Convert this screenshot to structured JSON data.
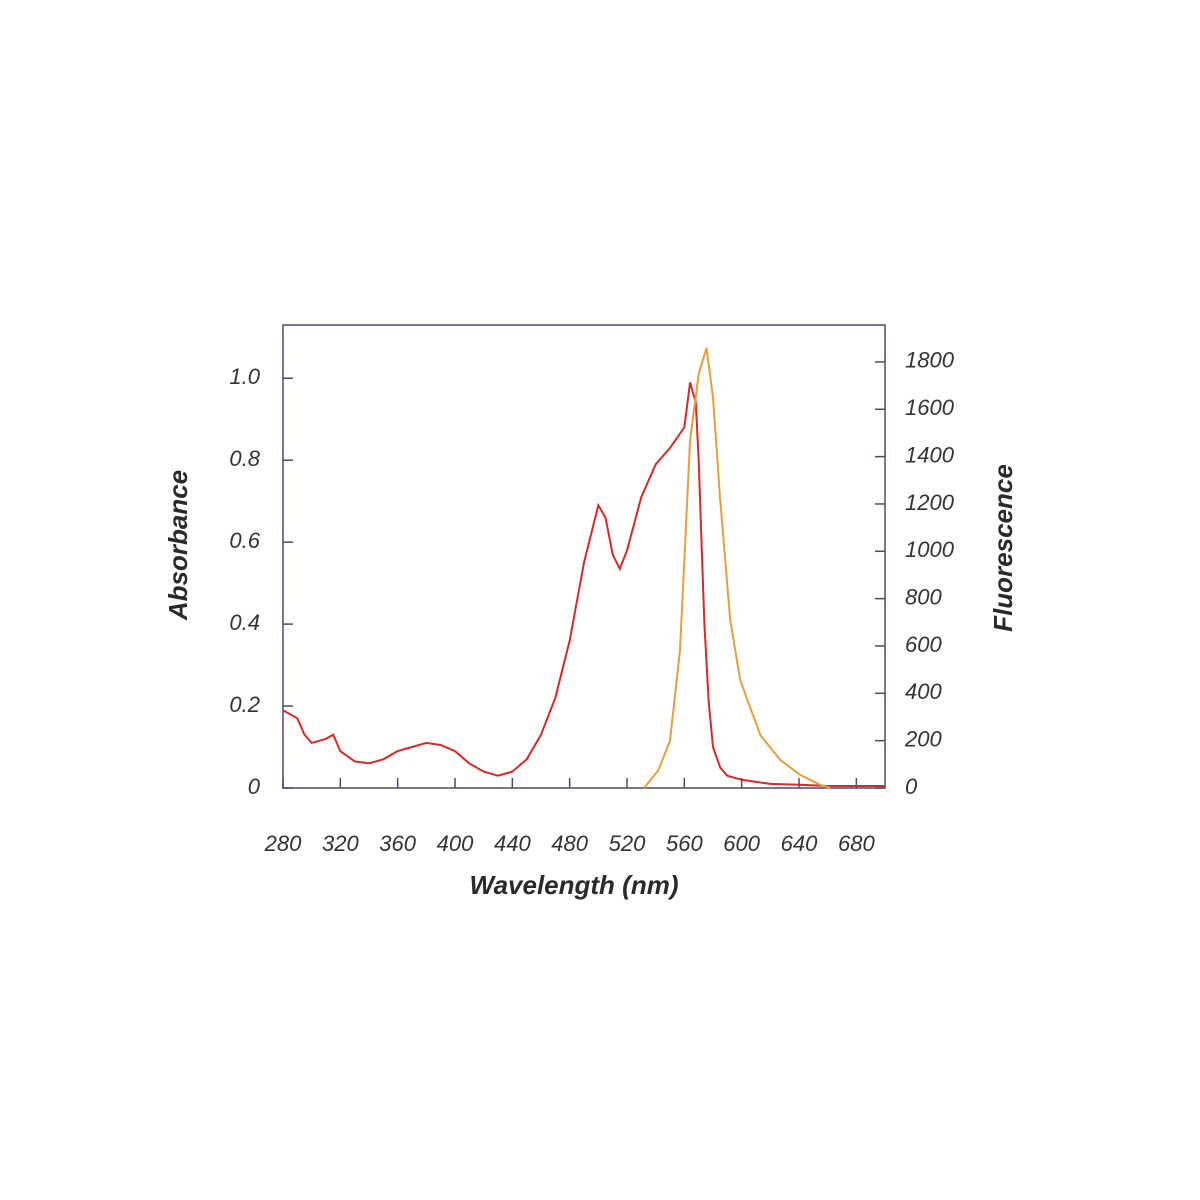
{
  "chart_data": {
    "type": "line",
    "xlabel": "Wavelength (nm)",
    "ylabel": "Absorbance",
    "y2label": "Fluorescence",
    "xlim": [
      280,
      700
    ],
    "xticks": [
      280,
      320,
      360,
      400,
      440,
      480,
      520,
      560,
      600,
      640,
      680
    ],
    "ylim": [
      0,
      1.13
    ],
    "yticks": [
      0,
      0.2,
      0.4,
      0.6,
      {
        "value": 1,
        "label": "1.0"
      },
      0.8
    ],
    "y2lim": [
      0,
      1956
    ],
    "y2ticks": [
      0,
      200,
      400,
      600,
      800,
      1000,
      1200,
      1400,
      1600,
      1800
    ],
    "series": [
      {
        "name": "Absorbance",
        "color": "#d42a2a",
        "x": [
          280,
          290,
          295,
          300,
          310,
          315,
          320,
          330,
          340,
          350,
          360,
          370,
          380,
          390,
          400,
          410,
          420,
          430,
          440,
          450,
          460,
          470,
          480,
          490,
          500,
          505,
          510,
          515,
          520,
          530,
          540,
          550,
          560,
          564,
          568,
          570,
          572,
          574,
          577,
          580,
          585,
          590,
          600,
          620,
          640,
          660,
          700
        ],
        "values": [
          0.19,
          0.17,
          0.13,
          0.11,
          0.12,
          0.13,
          0.09,
          0.065,
          0.06,
          0.07,
          0.09,
          0.1,
          0.11,
          0.105,
          0.09,
          0.06,
          0.04,
          0.03,
          0.04,
          0.07,
          0.13,
          0.22,
          0.36,
          0.55,
          0.69,
          0.66,
          0.57,
          0.535,
          0.58,
          0.71,
          0.79,
          0.83,
          0.88,
          0.99,
          0.94,
          0.8,
          0.6,
          0.4,
          0.21,
          0.1,
          0.05,
          0.03,
          0.02,
          0.01,
          0.008,
          0.005,
          0.005
        ]
      },
      {
        "name": "Fluorescence",
        "color": "#e3a040",
        "axis": "y2",
        "x": [
          532,
          542,
          550,
          557,
          564,
          570,
          575.5,
          580,
          585,
          592,
          599,
          613,
          627,
          641,
          655,
          662
        ],
        "values": [
          0,
          76,
          200,
          583,
          1470,
          1750,
          1859,
          1650,
          1217,
          710,
          456,
          224,
          118,
          55,
          13,
          0
        ]
      }
    ]
  }
}
